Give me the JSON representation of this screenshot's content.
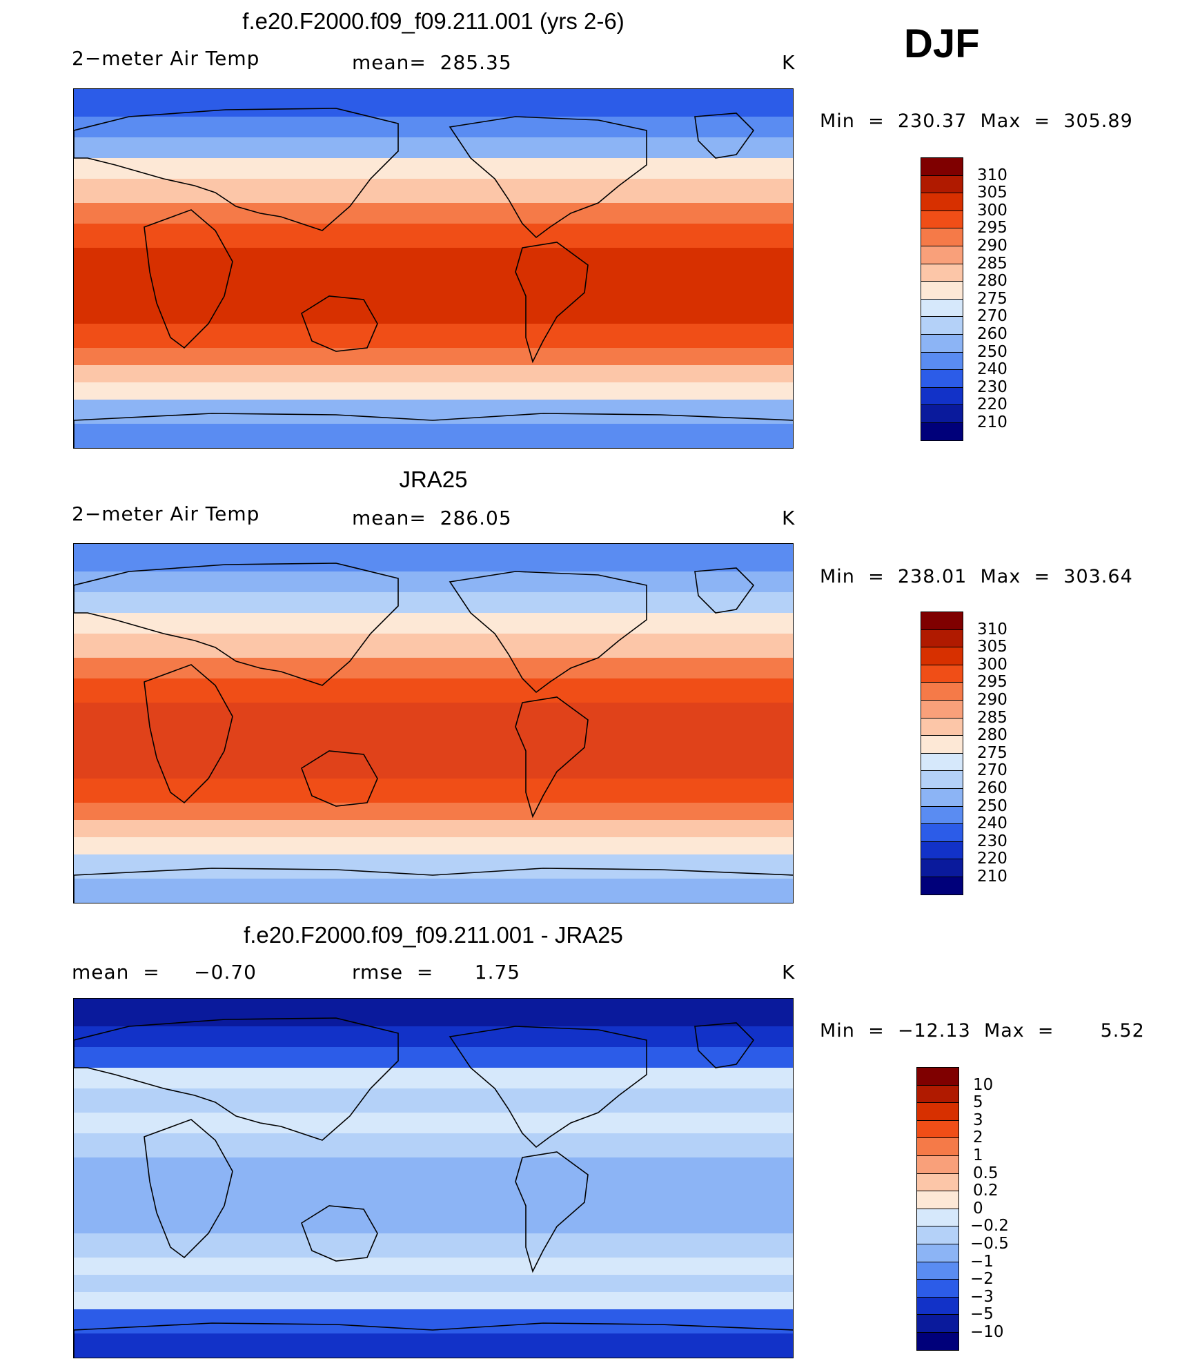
{
  "season": "DJF",
  "panels": [
    {
      "title": "f.e20.F2000.f09_f09.211.001 (yrs 2-6)",
      "left_label": "2−meter Air Temp",
      "stat_label": "mean=  285.35",
      "units": "K",
      "minmax": "Min  =  230.37  Max  =  305.89",
      "style": "absolute",
      "colorbar": {
        "ticks": [
          "310",
          "305",
          "300",
          "295",
          "290",
          "285",
          "280",
          "275",
          "270",
          "260",
          "250",
          "240",
          "230",
          "220",
          "210"
        ],
        "colors": [
          "#7f0000",
          "#b01a00",
          "#d73000",
          "#f04e17",
          "#f57a48",
          "#f9a07a",
          "#fcc6a8",
          "#fde8d6",
          "#d6e8fb",
          "#b4d1f8",
          "#8cb4f5",
          "#5a8cf2",
          "#2c5ce8",
          "#1232c8",
          "#0a1a9c",
          "#00007a"
        ]
      },
      "map_fields": {
        "tropic": "#f04e17",
        "core": "#d73000",
        "sub": "#f57a48",
        "mid": "#fcc6a8",
        "cool": "#fde8d6",
        "pole": "#5a8cf2",
        "polar": "#2c5ce8",
        "land_n": "#8cb4f5"
      }
    },
    {
      "title": "JRA25",
      "left_label": "2−meter Air Temp",
      "stat_label": "mean=  286.05",
      "units": "K",
      "minmax": "Min  =  238.01  Max  =  303.64",
      "style": "absolute",
      "colorbar": {
        "ticks": [
          "310",
          "305",
          "300",
          "295",
          "290",
          "285",
          "280",
          "275",
          "270",
          "260",
          "250",
          "240",
          "230",
          "220",
          "210"
        ],
        "colors": [
          "#7f0000",
          "#b01a00",
          "#d73000",
          "#f04e17",
          "#f57a48",
          "#f9a07a",
          "#fcc6a8",
          "#fde8d6",
          "#d6e8fb",
          "#b4d1f8",
          "#8cb4f5",
          "#5a8cf2",
          "#2c5ce8",
          "#1232c8",
          "#0a1a9c",
          "#00007a"
        ]
      },
      "map_fields": {
        "tropic": "#f04e17",
        "core": "#e0421a",
        "sub": "#f57a48",
        "mid": "#fcc6a8",
        "cool": "#fde8d6",
        "pole": "#8cb4f5",
        "polar": "#5a8cf2",
        "land_n": "#b4d1f8"
      }
    },
    {
      "title": "f.e20.F2000.f09_f09.211.001 - JRA25",
      "left_label": "mean  =     −0.70",
      "stat_label": "rmse  =      1.75",
      "units": "K",
      "minmax": "Min  =  −12.13  Max  =       5.52",
      "style": "difference",
      "colorbar": {
        "ticks": [
          "10",
          "5",
          "3",
          "2",
          "1",
          "0.5",
          "0.2",
          "0",
          "−0.2",
          "−0.5",
          "−1",
          "−2",
          "−3",
          "−5",
          "−10"
        ],
        "colors": [
          "#7f0000",
          "#b01a00",
          "#d73000",
          "#f04e17",
          "#f57a48",
          "#f9a07a",
          "#fcc6a8",
          "#fde8d6",
          "#d6e8fb",
          "#b4d1f8",
          "#8cb4f5",
          "#5a8cf2",
          "#2c5ce8",
          "#1232c8",
          "#0a1a9c",
          "#00007a"
        ]
      },
      "map_fields": {
        "tropic": "#b4d1f8",
        "core": "#8cb4f5",
        "sub": "#d6e8fb",
        "mid": "#b4d1f8",
        "cool": "#d6e8fb",
        "pole": "#1232c8",
        "polar": "#0a1a9c",
        "land_n": "#2c5ce8"
      }
    }
  ]
}
